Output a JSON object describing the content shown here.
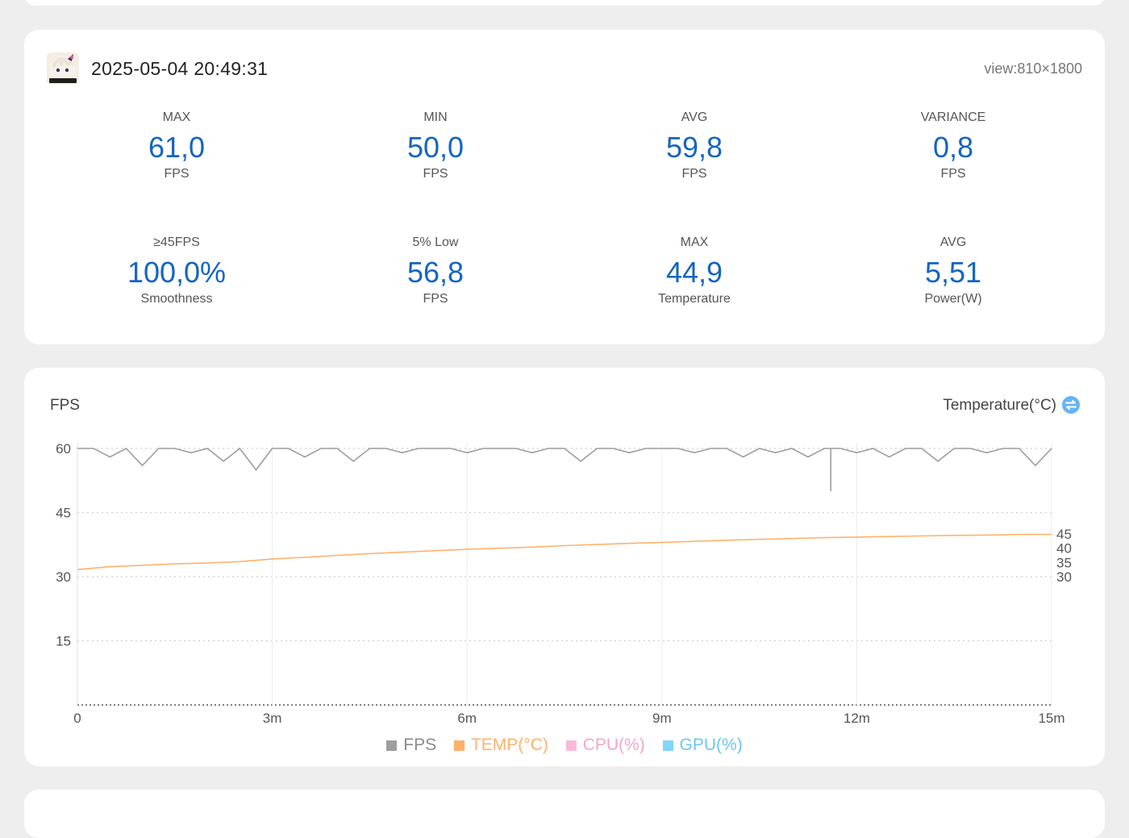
{
  "session": {
    "datetime": "2025-05-04 20:49:31",
    "view": "view:810×1800"
  },
  "stats": [
    {
      "label": "MAX",
      "value": "61,0",
      "unit": "FPS"
    },
    {
      "label": "MIN",
      "value": "50,0",
      "unit": "FPS"
    },
    {
      "label": "AVG",
      "value": "59,8",
      "unit": "FPS"
    },
    {
      "label": "VARIANCE",
      "value": "0,8",
      "unit": "FPS"
    },
    {
      "label": "≥45FPS",
      "value": "100,0%",
      "unit": "Smoothness"
    },
    {
      "label": "5% Low",
      "value": "56,8",
      "unit": "FPS"
    },
    {
      "label": "MAX",
      "value": "44,9",
      "unit": "Temperature"
    },
    {
      "label": "AVG",
      "value": "5,51",
      "unit": "Power(W)"
    }
  ],
  "chart": {
    "left_axis_title": "FPS",
    "right_axis_title": "Temperature(°C)",
    "toggle_icon": "swap-icon",
    "legend": [
      {
        "label": "FPS",
        "color": "#9e9e9e"
      },
      {
        "label": "TEMP(°C)",
        "color": "#ffb26b"
      },
      {
        "label": "CPU(%)",
        "color": "#f8bbd9"
      },
      {
        "label": "GPU(%)",
        "color": "#81d4fa"
      }
    ]
  },
  "chart_data": {
    "type": "line",
    "x_unit": "minutes",
    "xlim": [
      0,
      15
    ],
    "x_ticks": [
      "0",
      "3m",
      "6m",
      "9m",
      "12m",
      "15m"
    ],
    "left_ylim": [
      0,
      60
    ],
    "left_y_ticks": [
      "60",
      "45",
      "30",
      "15"
    ],
    "right_y_ticks": [
      "45",
      "40",
      "35",
      "30"
    ],
    "grid": true,
    "legend_position": "bottom",
    "series": [
      {
        "name": "FPS",
        "axis": "left",
        "color": "#9e9e9e",
        "x": [
          0,
          0.25,
          0.5,
          0.75,
          1,
          1.25,
          1.5,
          1.75,
          2,
          2.25,
          2.5,
          2.75,
          3,
          3.25,
          3.5,
          3.75,
          4,
          4.25,
          4.5,
          4.75,
          5,
          5.25,
          5.5,
          5.75,
          6,
          6.25,
          6.5,
          6.75,
          7,
          7.25,
          7.5,
          7.75,
          8,
          8.25,
          8.5,
          8.75,
          9,
          9.25,
          9.5,
          9.75,
          10,
          10.25,
          10.5,
          10.75,
          11,
          11.25,
          11.5,
          11.75,
          12,
          12.25,
          12.5,
          12.75,
          13,
          13.25,
          13.5,
          13.75,
          14,
          14.25,
          14.5,
          14.75,
          15
        ],
        "values": [
          60,
          60,
          58,
          60,
          56,
          60,
          60,
          59,
          60,
          57,
          60,
          55,
          60,
          60,
          58,
          60,
          60,
          57,
          60,
          60,
          59,
          60,
          60,
          60,
          59,
          60,
          60,
          60,
          59,
          60,
          60,
          57,
          60,
          60,
          59,
          60,
          60,
          60,
          59,
          60,
          60,
          58,
          60,
          59,
          60,
          58,
          60,
          60,
          59,
          60,
          58,
          60,
          60,
          57,
          60,
          60,
          59,
          60,
          60,
          56,
          60
        ],
        "min_point": {
          "x": 11.6,
          "y": 50.0
        }
      },
      {
        "name": "TEMP(°C)",
        "axis": "right",
        "color": "#ffb26b",
        "x": [
          0,
          0.5,
          1,
          1.5,
          2,
          2.5,
          3,
          3.5,
          4,
          4.5,
          5,
          5.5,
          6,
          6.5,
          7,
          7.5,
          8,
          8.5,
          9,
          9.5,
          10,
          10.5,
          11,
          11.5,
          12,
          12.5,
          13,
          13.5,
          14,
          14.5,
          15
        ],
        "values": [
          32.5,
          33.5,
          34.0,
          34.5,
          34.8,
          35.3,
          36.2,
          36.8,
          37.5,
          38.1,
          38.6,
          39.1,
          39.6,
          40.0,
          40.4,
          40.9,
          41.3,
          41.7,
          42.0,
          42.4,
          42.8,
          43.1,
          43.4,
          43.7,
          43.9,
          44.1,
          44.3,
          44.5,
          44.6,
          44.8,
          44.9
        ]
      },
      {
        "name": "CPU(%)",
        "axis": "left",
        "color": "#f8bbd9",
        "values": []
      },
      {
        "name": "GPU(%)",
        "axis": "left",
        "color": "#81d4fa",
        "values": []
      }
    ]
  }
}
